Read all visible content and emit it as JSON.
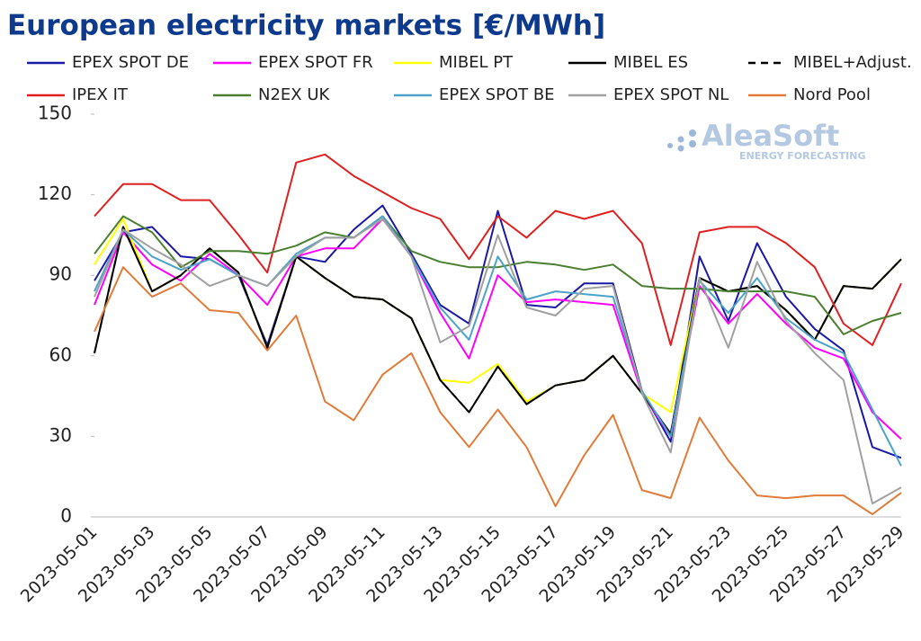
{
  "chart_data": {
    "type": "line",
    "title": "European electricity markets [€/MWh]",
    "watermark": "AleaSoft",
    "watermark_subtitle": "ENERGY FORECASTING",
    "categories": [
      "2023-05-01",
      null,
      "2023-05-03",
      null,
      "2023-05-05",
      null,
      "2023-05-07",
      null,
      "2023-05-09",
      null,
      "2023-05-11",
      null,
      "2023-05-13",
      null,
      "2023-05-15",
      null,
      "2023-05-17",
      null,
      "2023-05-19",
      null,
      "2023-05-21",
      null,
      "2023-05-23",
      null,
      "2023-05-25",
      null,
      "2023-05-27",
      null,
      "2023-05-29"
    ],
    "ylim": [
      0,
      150
    ],
    "yticks": [
      0,
      30,
      60,
      90,
      120,
      150
    ],
    "grid": false,
    "series": [
      {
        "name": "EPEX SPOT DE",
        "color": "#1a1aa6",
        "values": [
          88,
          106,
          108,
          97,
          96,
          90,
          64,
          97,
          95,
          107,
          116,
          98,
          79,
          72,
          114,
          79,
          78,
          87,
          87,
          47,
          28,
          97,
          73,
          102,
          82,
          70,
          62,
          26,
          22
        ]
      },
      {
        "name": "EPEX SPOT FR",
        "color": "#ff00ff",
        "values": [
          79,
          106,
          94,
          88,
          98,
          90,
          79,
          97,
          100,
          100,
          111,
          97,
          76,
          59,
          90,
          80,
          81,
          80,
          79,
          46,
          30,
          86,
          72,
          83,
          72,
          63,
          59,
          39,
          29
        ]
      },
      {
        "name": "MIBEL PT",
        "color": "#ffff00",
        "values": [
          94,
          111,
          84,
          90,
          100,
          91,
          63,
          97,
          89,
          82,
          81,
          74,
          51,
          50,
          57,
          43,
          49,
          51,
          60,
          46,
          39,
          89,
          84,
          86,
          77,
          66,
          86,
          85,
          96
        ]
      },
      {
        "name": "MIBEL ES",
        "color": "#000000",
        "values": [
          61,
          108,
          84,
          90,
          100,
          91,
          63,
          97,
          89,
          82,
          81,
          74,
          51,
          39,
          56,
          42,
          49,
          51,
          60,
          46,
          31,
          89,
          84,
          86,
          77,
          66,
          86,
          85,
          96
        ]
      },
      {
        "name": "MIBEL+Adjust.",
        "color": "#000000",
        "dash": true,
        "values": [
          61,
          108,
          84,
          90,
          100,
          91,
          63,
          97,
          89,
          82,
          81,
          74,
          51,
          39,
          56,
          42,
          49,
          51,
          60,
          46,
          31,
          89,
          84,
          86,
          77,
          66,
          86,
          85,
          96
        ]
      },
      {
        "name": "IPEX IT",
        "color": "#e02020",
        "values": [
          112,
          124,
          124,
          118,
          118,
          105,
          91,
          132,
          135,
          127,
          121,
          115,
          111,
          96,
          112,
          104,
          114,
          111,
          114,
          102,
          64,
          106,
          108,
          108,
          102,
          93,
          72,
          64,
          87
        ]
      },
      {
        "name": "N2EX UK",
        "color": "#4a7f2f",
        "values": [
          98,
          112,
          106,
          93,
          99,
          99,
          98,
          101,
          106,
          104,
          112,
          99,
          95,
          93,
          93,
          95,
          94,
          92,
          94,
          86,
          85,
          85,
          84,
          84,
          84,
          82,
          68,
          73,
          76
        ]
      },
      {
        "name": "EPEX SPOT BE",
        "color": "#4ba3c9",
        "values": [
          84,
          107,
          97,
          92,
          96,
          90,
          86,
          98,
          104,
          104,
          112,
          97,
          78,
          66,
          97,
          81,
          84,
          83,
          82,
          47,
          30,
          88,
          76,
          89,
          74,
          66,
          61,
          40,
          19
        ]
      },
      {
        "name": "EPEX SPOT NL",
        "color": "#a0a0a0",
        "values": [
          82,
          107,
          100,
          94,
          86,
          90,
          86,
          97,
          104,
          104,
          111,
          97,
          65,
          71,
          105,
          78,
          75,
          85,
          86,
          46,
          24,
          89,
          63,
          95,
          73,
          61,
          51,
          5,
          11
        ]
      },
      {
        "name": "Nord Pool",
        "color": "#e07b39",
        "values": [
          69,
          93,
          82,
          87,
          77,
          76,
          62,
          75,
          43,
          36,
          53,
          61,
          39,
          26,
          40,
          26,
          4,
          23,
          38,
          10,
          7,
          37,
          21,
          8,
          7,
          8,
          8,
          1,
          9
        ]
      }
    ]
  }
}
